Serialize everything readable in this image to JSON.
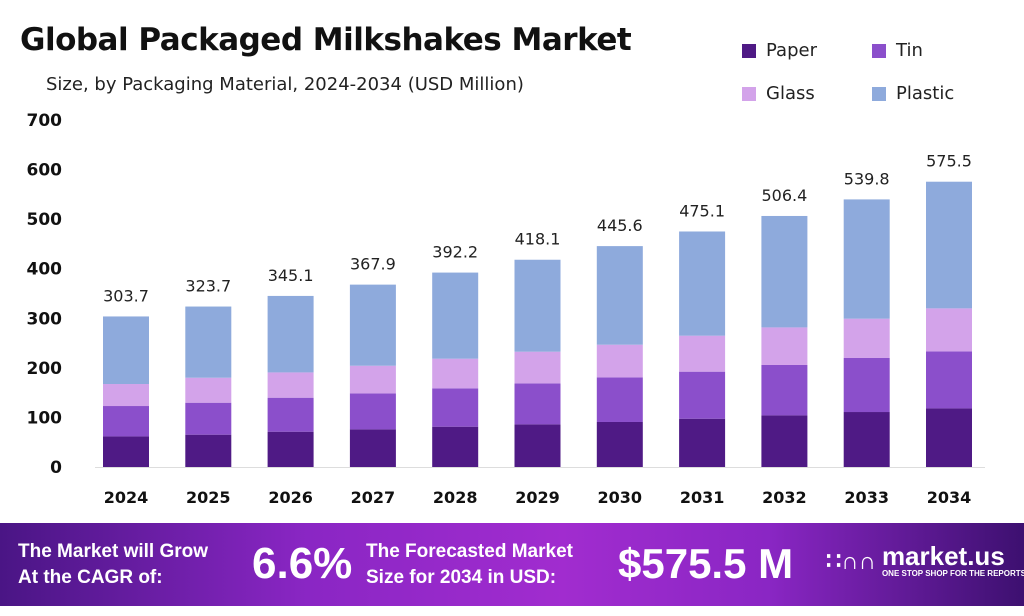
{
  "header": {
    "title": "Global Packaged Milkshakes Market",
    "subtitle": "Size, by Packaging Material, 2024-2034 (USD Million)"
  },
  "chart_data": {
    "type": "bar",
    "stacked": true,
    "categories": [
      "2024",
      "2025",
      "2026",
      "2027",
      "2028",
      "2029",
      "2030",
      "2031",
      "2032",
      "2033",
      "2034"
    ],
    "series": [
      {
        "name": "Paper",
        "color": "#4f1a85",
        "values": [
          61.7,
          65.2,
          71.2,
          75.9,
          81.3,
          86.0,
          90.8,
          97.4,
          104.1,
          110.9,
          118.2
        ]
      },
      {
        "name": "Tin",
        "color": "#8b4fcb",
        "values": [
          61.3,
          64.5,
          68.6,
          72.6,
          77.3,
          82.7,
          90.0,
          94.9,
          101.7,
          109.0,
          115.0
        ]
      },
      {
        "name": "Glass",
        "color": "#d3a3ea",
        "values": [
          44.4,
          50.4,
          51.0,
          55.8,
          59.9,
          63.9,
          65.9,
          72.6,
          75.8,
          79.3,
          86.8
        ]
      },
      {
        "name": "Plastic",
        "color": "#8eaadc",
        "values": [
          136.3,
          143.6,
          154.3,
          163.6,
          173.7,
          185.5,
          198.9,
          210.2,
          224.8,
          240.6,
          255.5
        ]
      }
    ],
    "totals": [
      "303.7",
      "323.7",
      "345.1",
      "367.9",
      "392.2",
      "418.1",
      "445.6",
      "475.1",
      "506.4",
      "539.8",
      "575.5"
    ],
    "ylim": [
      0,
      700
    ],
    "yticks": [
      "0",
      "100",
      "200",
      "300",
      "400",
      "500",
      "600",
      "700"
    ],
    "grid": false,
    "legend": "top-right"
  },
  "legend": {
    "items": [
      "Paper",
      "Tin",
      "Glass",
      "Plastic"
    ]
  },
  "banner": {
    "cagr_label_1": "The Market will Grow",
    "cagr_label_2": "At the CAGR of:",
    "cagr_value": "6.6%",
    "forecast_label_1": "The Forecasted Market",
    "forecast_label_2": "Size for 2034 in USD:",
    "forecast_value": "$575.5 M",
    "brand": "market.us",
    "brand_tagline": "ONE STOP SHOP FOR THE REPORTS"
  }
}
